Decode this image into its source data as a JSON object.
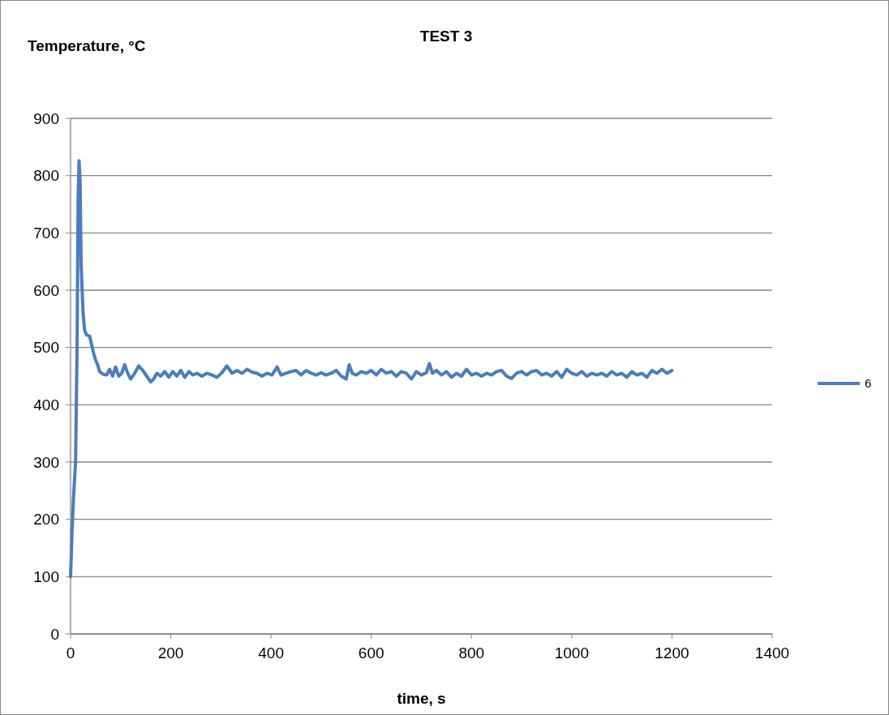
{
  "chart_data": {
    "type": "line",
    "title": "TEST 3",
    "ylabel": "Temperature, °C",
    "xlabel": "time, s",
    "xlim": [
      0,
      1400
    ],
    "xticks": [
      0,
      200,
      400,
      600,
      800,
      1000,
      1200,
      1400
    ],
    "ylim": [
      0,
      900
    ],
    "yticks": [
      0,
      100,
      200,
      300,
      400,
      500,
      600,
      700,
      800,
      900
    ],
    "grid": "y",
    "legend": "right",
    "marker": "none",
    "line_style": "solid",
    "series": [
      {
        "name": "6",
        "color": "#4a7ebb",
        "x": [
          0,
          3,
          6,
          10,
          13,
          15,
          17,
          19,
          21,
          23,
          25,
          28,
          32,
          38,
          42,
          46,
          50,
          54,
          58,
          62,
          66,
          72,
          78,
          84,
          90,
          96,
          102,
          108,
          114,
          120,
          128,
          136,
          144,
          152,
          160,
          166,
          172,
          180,
          188,
          196,
          204,
          212,
          220,
          228,
          236,
          244,
          252,
          262,
          272,
          282,
          292,
          302,
          312,
          322,
          332,
          342,
          352,
          362,
          372,
          382,
          392,
          402,
          412,
          420,
          430,
          440,
          450,
          460,
          470,
          480,
          490,
          500,
          510,
          520,
          530,
          540,
          550,
          556,
          562,
          570,
          580,
          590,
          600,
          610,
          620,
          630,
          640,
          650,
          660,
          670,
          680,
          690,
          700,
          710,
          716,
          722,
          730,
          740,
          750,
          760,
          770,
          780,
          790,
          800,
          810,
          820,
          830,
          840,
          850,
          860,
          870,
          880,
          890,
          900,
          910,
          920,
          930,
          940,
          950,
          960,
          970,
          980,
          990,
          1000,
          1010,
          1020,
          1030,
          1040,
          1050,
          1060,
          1070,
          1080,
          1090,
          1100,
          1110,
          1120,
          1130,
          1140,
          1150,
          1160,
          1170,
          1180,
          1190,
          1200
        ],
        "values": [
          100,
          180,
          240,
          300,
          500,
          760,
          826,
          790,
          650,
          600,
          560,
          530,
          522,
          520,
          505,
          490,
          478,
          470,
          458,
          455,
          453,
          452,
          462,
          450,
          466,
          450,
          455,
          470,
          455,
          445,
          455,
          468,
          460,
          450,
          440,
          445,
          455,
          450,
          458,
          448,
          458,
          450,
          460,
          448,
          458,
          452,
          455,
          450,
          455,
          452,
          448,
          456,
          468,
          455,
          460,
          455,
          462,
          457,
          455,
          450,
          455,
          452,
          466,
          452,
          455,
          458,
          460,
          452,
          460,
          455,
          452,
          456,
          452,
          455,
          460,
          450,
          445,
          470,
          455,
          452,
          458,
          455,
          460,
          452,
          462,
          455,
          458,
          450,
          458,
          455,
          445,
          458,
          452,
          456,
          472,
          455,
          460,
          452,
          458,
          448,
          455,
          450,
          462,
          452,
          455,
          450,
          455,
          452,
          458,
          460,
          450,
          446,
          455,
          458,
          452,
          458,
          460,
          452,
          455,
          450,
          458,
          448,
          462,
          455,
          452,
          458,
          450,
          455,
          452,
          455,
          450,
          458,
          452,
          455,
          448,
          458,
          452,
          455,
          448,
          460,
          455,
          462,
          455,
          460
        ]
      }
    ]
  }
}
